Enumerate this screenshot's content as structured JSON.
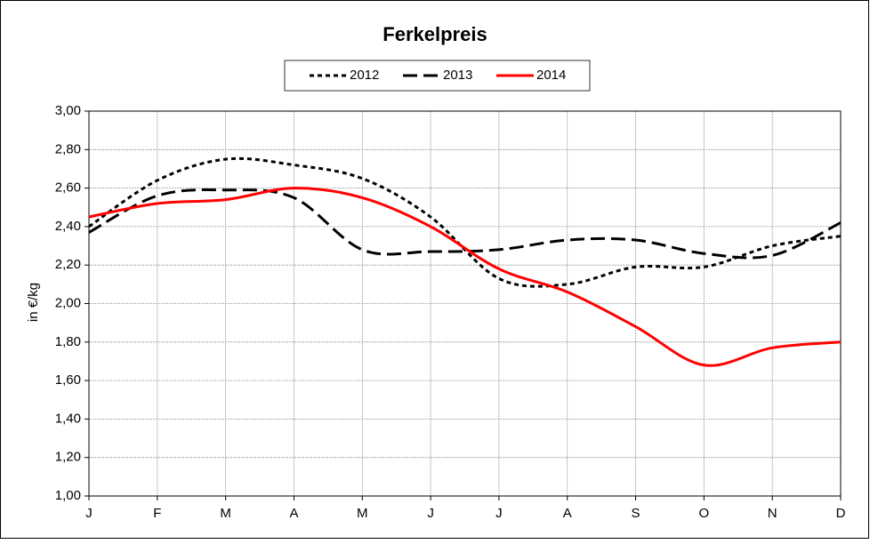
{
  "chart_data": {
    "type": "line",
    "title": "Ferkelpreis",
    "y_label": "in €/kg",
    "categories": [
      "J",
      "F",
      "M",
      "A",
      "M",
      "J",
      "J",
      "A",
      "S",
      "O",
      "N",
      "D"
    ],
    "series": [
      {
        "name": "2012",
        "color": "#000000",
        "style": "dotted",
        "values": [
          2.4,
          2.64,
          2.75,
          2.72,
          2.65,
          2.45,
          2.13,
          2.1,
          2.19,
          2.19,
          2.3,
          2.35
        ]
      },
      {
        "name": "2013",
        "color": "#000000",
        "style": "dashed",
        "values": [
          2.37,
          2.56,
          2.59,
          2.55,
          2.28,
          2.27,
          2.28,
          2.33,
          2.33,
          2.26,
          2.25,
          2.42
        ]
      },
      {
        "name": "2014",
        "color": "#ff0000",
        "style": "solid",
        "values": [
          2.45,
          2.52,
          2.54,
          2.6,
          2.55,
          2.4,
          2.18,
          2.06,
          1.88,
          1.68,
          1.77,
          1.8
        ]
      }
    ],
    "ylim": [
      1.0,
      3.0
    ],
    "yticks": [
      {
        "value": 1.0,
        "label": "1,00"
      },
      {
        "value": 1.2,
        "label": "1,20"
      },
      {
        "value": 1.4,
        "label": "1,40"
      },
      {
        "value": 1.6,
        "label": "1,60"
      },
      {
        "value": 1.8,
        "label": "1,80"
      },
      {
        "value": 2.0,
        "label": "2,00"
      },
      {
        "value": 2.2,
        "label": "2,20"
      },
      {
        "value": 2.4,
        "label": "2,40"
      },
      {
        "value": 2.6,
        "label": "2,60"
      },
      {
        "value": 2.8,
        "label": "2,80"
      },
      {
        "value": 3.0,
        "label": "3,00"
      }
    ],
    "grid": true,
    "legend": "top"
  }
}
